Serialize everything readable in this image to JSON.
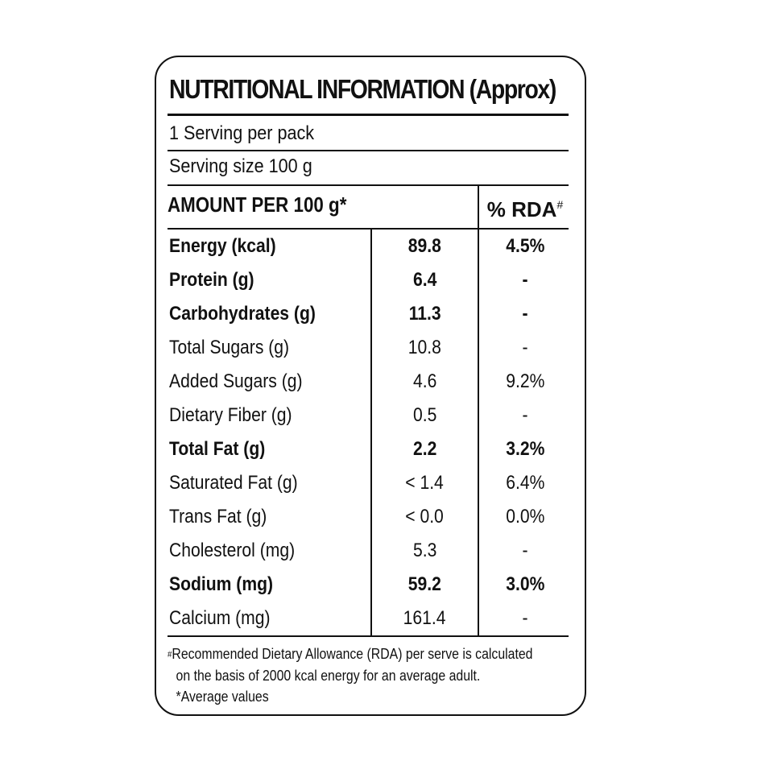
{
  "label": {
    "title": "NUTRITIONAL INFORMATION (Approx)",
    "servings_per_pack": "1 Serving per pack",
    "serving_size": "Serving size 100 g",
    "amount_header": "AMOUNT PER 100 g*",
    "rda_header": "% RDA",
    "rda_header_mark": "#",
    "rows": [
      {
        "nutrient": "Energy (kcal)",
        "amount": "89.8",
        "rda": "4.5%",
        "bold": true
      },
      {
        "nutrient": "Protein (g)",
        "amount": "6.4",
        "rda": "-",
        "bold": true
      },
      {
        "nutrient": "Carbohydrates (g)",
        "amount": "11.3",
        "rda": "-",
        "bold": true
      },
      {
        "nutrient": "Total Sugars (g)",
        "amount": "10.8",
        "rda": "-",
        "bold": false
      },
      {
        "nutrient": "Added Sugars (g)",
        "amount": "4.6",
        "rda": "9.2%",
        "bold": false
      },
      {
        "nutrient": "Dietary Fiber (g)",
        "amount": "0.5",
        "rda": "-",
        "bold": false
      },
      {
        "nutrient": "Total Fat (g)",
        "amount": "2.2",
        "rda": "3.2%",
        "bold": true
      },
      {
        "nutrient": "Saturated Fat (g)",
        "amount": "< 1.4",
        "rda": "6.4%",
        "bold": false
      },
      {
        "nutrient": "Trans Fat (g)",
        "amount": "< 0.0",
        "rda": "0.0%",
        "bold": false
      },
      {
        "nutrient": "Cholesterol (mg)",
        "amount": "5.3",
        "rda": "-",
        "bold": false
      },
      {
        "nutrient": "Sodium (mg)",
        "amount": "59.2",
        "rda": "3.0%",
        "bold": true
      },
      {
        "nutrient": "Calcium (mg)",
        "amount": "161.4",
        "rda": "-",
        "bold": false
      }
    ],
    "footnote": {
      "hash_mark": "#",
      "line1": "Recommended Dietary Allowance (RDA) per serve is calculated",
      "line2": "on the basis of 2000 kcal energy for an average adult.",
      "line3": "*Average values"
    }
  }
}
